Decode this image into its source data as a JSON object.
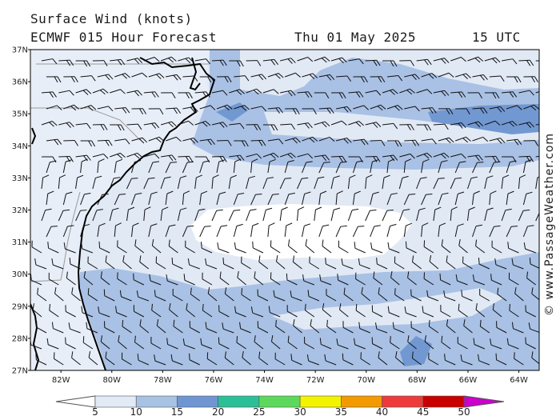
{
  "header": {
    "title": "Surface Wind (knots)",
    "model": "ECMWF 015 Hour Forecast",
    "date": "Thu 01 May 2025",
    "time": "15 UTC"
  },
  "credit": "© www.PassageWeather.com",
  "map": {
    "lat_labels": [
      "37N",
      "36N",
      "35N",
      "34N",
      "33N",
      "32N",
      "31N",
      "30N",
      "29N",
      "28N",
      "27N"
    ],
    "lon_labels": [
      "82W",
      "80W",
      "78W",
      "76W",
      "74W",
      "72W",
      "70W",
      "68W",
      "66W",
      "64W"
    ],
    "lat_range": [
      27,
      37
    ],
    "lon_range": [
      -83.2,
      -63.2
    ]
  },
  "scale": {
    "labels": [
      "5",
      "10",
      "15",
      "20",
      "25",
      "30",
      "35",
      "40",
      "45",
      "50"
    ],
    "colors": [
      "#e2eaf6",
      "#a8c2e4",
      "#6f95d2",
      "#2bbf98",
      "#5cd95c",
      "#f3f300",
      "#f39a00",
      "#ee3a3a",
      "#c80000",
      "#cc00cc"
    ]
  },
  "colors": {
    "calm": "#ffffff",
    "light": "#e1e9f5",
    "moderate": "#a9c1e5",
    "fresh": "#7298d2",
    "coast": "#000000",
    "border": "#999999"
  }
}
